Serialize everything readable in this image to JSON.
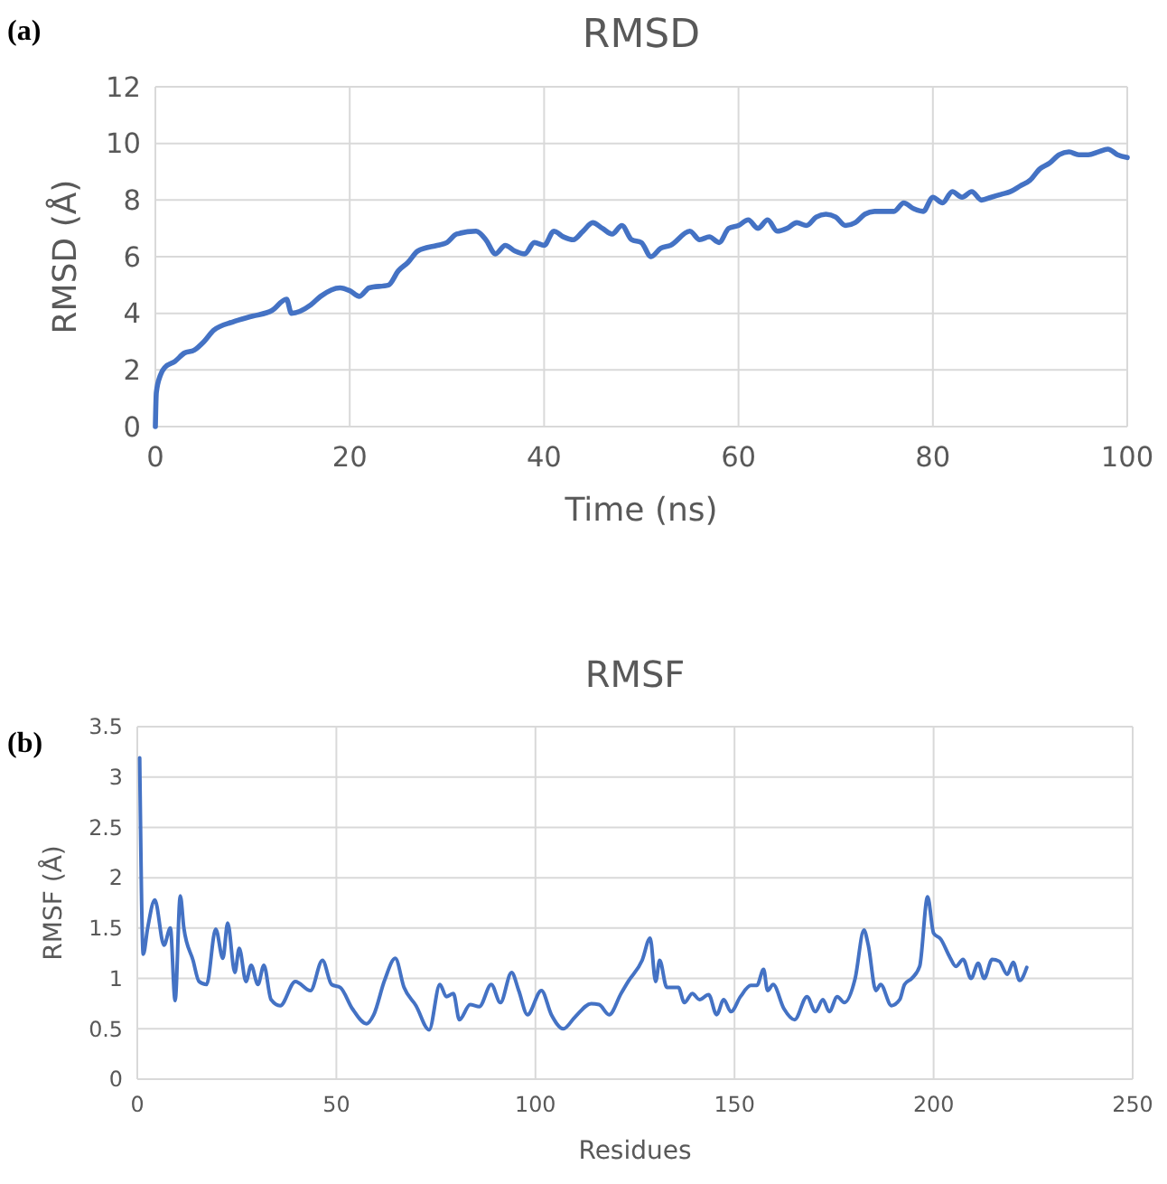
{
  "chart_data": [
    {
      "type": "line",
      "title": "RMSD",
      "xlabel": "Time (ns)",
      "ylabel": "RMSD (Å)",
      "annotations": [
        "(a)"
      ],
      "xlim": [
        0,
        100
      ],
      "xticks": [
        0,
        20,
        40,
        60,
        80,
        100
      ],
      "ylim": [
        0,
        12
      ],
      "yticks": [
        0,
        2,
        4,
        6,
        8,
        10,
        12
      ],
      "grid": true,
      "marker": "none",
      "line_style": "solid",
      "series": [
        {
          "color": "#4472c4",
          "x": [
            0,
            0.1,
            0.5,
            1,
            2,
            3,
            4,
            5,
            6,
            8,
            10,
            12,
            13.5,
            14,
            16,
            17,
            19,
            20,
            21,
            22,
            24,
            25,
            26,
            27,
            29,
            30,
            31,
            33,
            34,
            35,
            36,
            37,
            38,
            39,
            40,
            41,
            42,
            43,
            44,
            45,
            46,
            47,
            48,
            49,
            50,
            51,
            52,
            53,
            55,
            56,
            57,
            58,
            59,
            60,
            61,
            62,
            63,
            64,
            65,
            66,
            67,
            68,
            69,
            70,
            71,
            72,
            73,
            74,
            76,
            77,
            78,
            79,
            80,
            81,
            82,
            83,
            84,
            85,
            86,
            87,
            88,
            89,
            90,
            91,
            92,
            93,
            94,
            95,
            96,
            97,
            98,
            99,
            100
          ],
          "values": [
            0,
            1.2,
            1.8,
            2.1,
            2.3,
            2.6,
            2.7,
            3.0,
            3.4,
            3.7,
            3.9,
            4.1,
            4.5,
            4.0,
            4.3,
            4.6,
            4.9,
            4.8,
            4.6,
            4.9,
            5.0,
            5.5,
            5.8,
            6.2,
            6.4,
            6.5,
            6.8,
            6.9,
            6.6,
            6.1,
            6.4,
            6.2,
            6.1,
            6.5,
            6.4,
            6.9,
            6.7,
            6.6,
            6.9,
            7.2,
            7.0,
            6.8,
            7.1,
            6.6,
            6.5,
            6.0,
            6.3,
            6.4,
            6.9,
            6.6,
            6.7,
            6.5,
            7.0,
            7.1,
            7.3,
            7.0,
            7.3,
            6.9,
            7.0,
            7.2,
            7.1,
            7.4,
            7.5,
            7.4,
            7.1,
            7.2,
            7.5,
            7.6,
            7.6,
            7.9,
            7.7,
            7.6,
            8.1,
            7.9,
            8.3,
            8.1,
            8.3,
            8.0,
            8.1,
            8.2,
            8.3,
            8.5,
            8.7,
            9.1,
            9.3,
            9.6,
            9.7,
            9.6,
            9.6,
            9.7,
            9.8,
            9.6,
            9.5
          ]
        }
      ]
    },
    {
      "type": "line",
      "title": "RMSF",
      "xlabel": "Residues",
      "ylabel": "RMSF (Å)",
      "annotations": [
        "(b)"
      ],
      "xlim": [
        0,
        250
      ],
      "xticks": [
        0,
        50,
        100,
        150,
        200,
        250
      ],
      "ylim": [
        0,
        3.5
      ],
      "yticks": [
        0,
        0.5,
        1,
        1.5,
        2,
        2.5,
        3,
        3.5
      ],
      "grid": true,
      "marker": "none",
      "line_style": "solid",
      "series": [
        {
          "color": "#4472c4",
          "x": [
            0.6,
            1.5,
            2.6,
            4.4,
            6.7,
            8.3,
            9.5,
            10.8,
            11.7,
            14,
            15.5,
            17.4,
            19.7,
            21.5,
            22.7,
            24.5,
            25.6,
            27.3,
            28.6,
            30.3,
            31.8,
            33.6,
            35.9,
            39.7,
            43.5,
            46.5,
            48.8,
            51,
            54,
            57.6,
            59.4,
            62.1,
            64.8,
            67,
            70,
            73.3,
            76,
            77.6,
            79.4,
            80.9,
            83.6,
            85.9,
            88.9,
            91.2,
            94,
            95.8,
            98,
            101.5,
            104,
            107,
            110,
            114,
            116,
            118.5,
            121.5,
            123.3,
            126.8,
            128.8,
            130.2,
            131.2,
            133,
            135.9,
            137.4,
            139.4,
            141.2,
            143.5,
            145.5,
            147.3,
            149.1,
            151.5,
            154.1,
            155.6,
            157.3,
            158.3,
            159.7,
            162.4,
            165.1,
            168.2,
            170.3,
            172.2,
            173.8,
            175.8,
            177.6,
            180.3,
            182.5,
            183.6,
            185.5,
            186.7,
            189.4,
            191.5,
            192.7,
            194.5,
            196.5,
            198.5,
            200,
            201.8,
            204.1,
            205.6,
            207.4,
            209.4,
            211.2,
            212.7,
            214.7,
            216.5,
            218.5,
            220,
            221.6,
            223.4
          ],
          "values": [
            3.19,
            1.24,
            1.5,
            1.78,
            1.33,
            1.5,
            0.78,
            1.82,
            1.5,
            1.18,
            0.97,
            0.94,
            1.49,
            1.2,
            1.55,
            1.06,
            1.3,
            0.97,
            1.13,
            0.94,
            1.13,
            0.79,
            0.73,
            0.97,
            0.88,
            1.18,
            0.94,
            0.91,
            0.7,
            0.55,
            0.64,
            0.98,
            1.2,
            0.91,
            0.73,
            0.49,
            0.94,
            0.82,
            0.85,
            0.59,
            0.74,
            0.72,
            0.94,
            0.76,
            1.06,
            0.88,
            0.64,
            0.88,
            0.64,
            0.5,
            0.62,
            0.75,
            0.74,
            0.64,
            0.85,
            0.97,
            1.18,
            1.4,
            0.97,
            1.18,
            0.91,
            0.91,
            0.76,
            0.85,
            0.79,
            0.84,
            0.64,
            0.79,
            0.67,
            0.82,
            0.93,
            0.93,
            1.09,
            0.88,
            0.94,
            0.7,
            0.59,
            0.82,
            0.67,
            0.79,
            0.67,
            0.82,
            0.76,
            1.0,
            1.48,
            1.33,
            0.88,
            0.94,
            0.73,
            0.79,
            0.94,
            1.0,
            1.12,
            1.81,
            1.45,
            1.39,
            1.21,
            1.12,
            1.19,
            1.0,
            1.15,
            1.0,
            1.19,
            1.17,
            1.04,
            1.16,
            0.98,
            1.11
          ]
        }
      ]
    }
  ]
}
